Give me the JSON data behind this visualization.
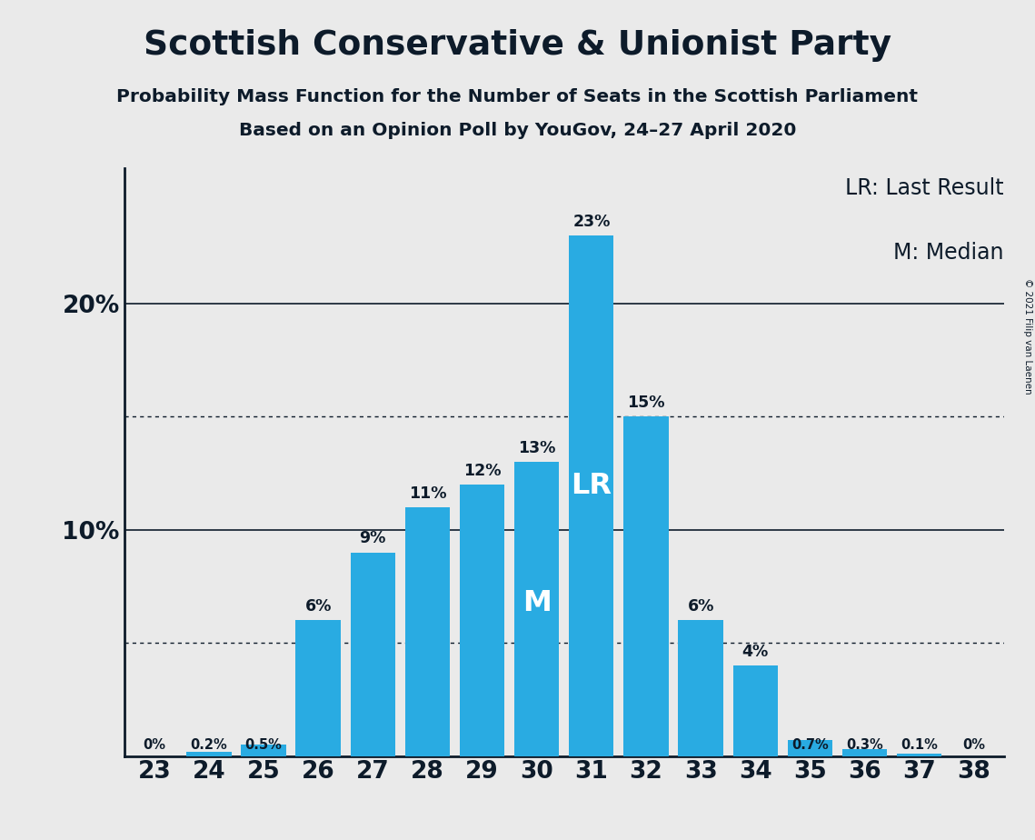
{
  "title": "Scottish Conservative & Unionist Party",
  "subtitle1": "Probability Mass Function for the Number of Seats in the Scottish Parliament",
  "subtitle2": "Based on an Opinion Poll by YouGov, 24–27 April 2020",
  "copyright": "© 2021 Filip van Laenen",
  "categories": [
    23,
    24,
    25,
    26,
    27,
    28,
    29,
    30,
    31,
    32,
    33,
    34,
    35,
    36,
    37,
    38
  ],
  "values": [
    0.0,
    0.2,
    0.5,
    6.0,
    9.0,
    11.0,
    12.0,
    13.0,
    23.0,
    15.0,
    6.0,
    4.0,
    0.7,
    0.3,
    0.1,
    0.0
  ],
  "labels": [
    "0%",
    "0.2%",
    "0.5%",
    "6%",
    "9%",
    "11%",
    "12%",
    "13%",
    "23%",
    "15%",
    "6%",
    "4%",
    "0.7%",
    "0.3%",
    "0.1%",
    "0%"
  ],
  "bar_color": "#29ABE2",
  "background_color": "#EAEAEA",
  "text_color": "#0D1B2A",
  "lr_bar": 31,
  "median_bar": 30,
  "dotted_lines": [
    5.0,
    15.0
  ],
  "solid_lines": [
    10.0,
    20.0
  ],
  "ylim": [
    0,
    26
  ],
  "ytick_positions": [
    10.0,
    20.0
  ],
  "ytick_labels": [
    "10%",
    "20%"
  ],
  "legend_line1": "LR: Last Result",
  "legend_line2": "M: Median"
}
